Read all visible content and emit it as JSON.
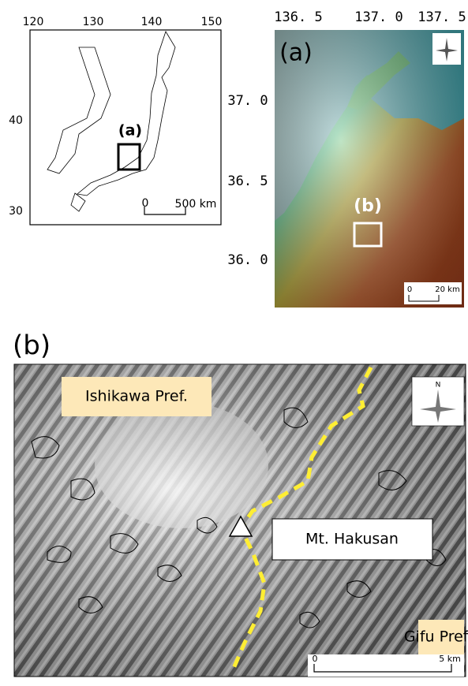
{
  "map_japan": {
    "x_labels": [
      "120",
      "130",
      "140",
      "150"
    ],
    "y_labels": [
      "40",
      "30"
    ],
    "box_label": "(a)",
    "scale": {
      "start": "0",
      "length": "500 km"
    }
  },
  "map_a": {
    "panel_label": "(a)",
    "x_labels": [
      "136. 5",
      "137. 0",
      "137. 5"
    ],
    "y_labels": [
      "37. 0",
      "36. 5",
      "36. 0"
    ],
    "box_label": "(b)",
    "scale": {
      "start": "0",
      "length": "20 km"
    }
  },
  "map_b": {
    "panel_label": "(b)",
    "labels": [
      "Ishikawa Pref.",
      "Mt. Hakusan",
      "Gifu Pref."
    ],
    "compass": "N",
    "scale": {
      "start": "0",
      "length": "5 km"
    }
  }
}
